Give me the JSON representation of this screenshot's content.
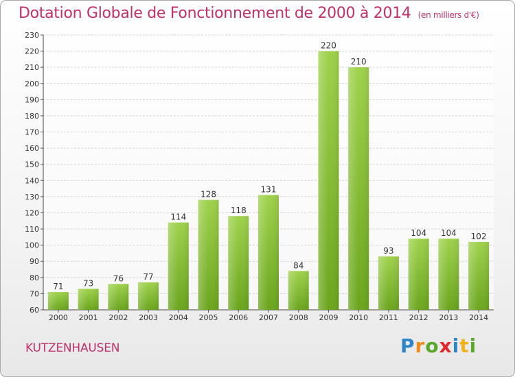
{
  "header": {
    "title": "Dotation Globale de Fonctionnement de 2000 à 2014",
    "unit": "(en milliers d'€)"
  },
  "footer": {
    "commune": "KUTZENHAUSEN",
    "brand": "Proxiti"
  },
  "colors": {
    "title": "#c0306a",
    "bar_light": "#9fd24c",
    "bar_dark": "#6aa51d",
    "grid": "#d4d4d4"
  },
  "chart_data": {
    "type": "bar",
    "title": "Dotation Globale de Fonctionnement de 2000 à 2014",
    "subtitle": "(en milliers d'€)",
    "xlabel": "",
    "ylabel": "",
    "categories": [
      "2000",
      "2001",
      "2002",
      "2003",
      "2004",
      "2005",
      "2006",
      "2007",
      "2008",
      "2009",
      "2010",
      "2011",
      "2012",
      "2013",
      "2014"
    ],
    "values": [
      71,
      73,
      76,
      77,
      114,
      128,
      118,
      131,
      84,
      220,
      210,
      93,
      104,
      104,
      102
    ],
    "ylim": [
      60,
      230
    ],
    "yticks": [
      60,
      70,
      80,
      90,
      100,
      110,
      120,
      130,
      140,
      150,
      160,
      170,
      180,
      190,
      200,
      210,
      220,
      230
    ],
    "grid": true,
    "data_labels": true
  }
}
